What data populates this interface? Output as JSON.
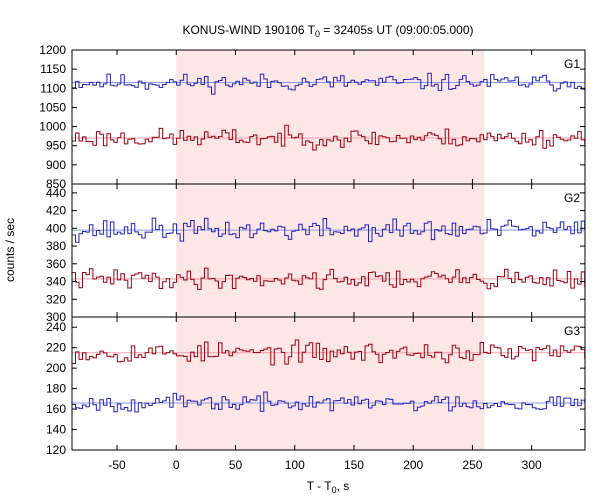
{
  "chart_data": {
    "type": "line",
    "title": {
      "prefix": "KONUS-WIND 190106 T",
      "sub": "0",
      "suffix": " = 32405s UT (09:00:05.000)"
    },
    "xlabel": {
      "prefix": "T - T",
      "sub": "0",
      "suffix": ", s"
    },
    "ylabel": "counts / sec",
    "xlim": [
      -88,
      345
    ],
    "x_ticks": [
      -50,
      0,
      50,
      100,
      150,
      200,
      250,
      300
    ],
    "x_tick_labels": [
      "-50",
      "0",
      "50",
      "100",
      "150",
      "200",
      "250",
      "300"
    ],
    "shaded_interval": [
      0,
      260
    ],
    "shade_color": "#fde6e6",
    "bin_width": 2.944,
    "panels": [
      {
        "label": "G1",
        "ylim": [
          850,
          1200
        ],
        "y_ticks": [
          850,
          900,
          950,
          1000,
          1050,
          1100,
          1150,
          1200
        ],
        "y_tick_labels": [
          "850",
          "900",
          "950",
          "1000",
          "1050",
          "1100",
          "1150",
          "1200"
        ],
        "series": [
          {
            "color": "#2222bb",
            "bg_color": "#8a9be8",
            "mean": 1115,
            "amplitude": 22,
            "seed": 11
          },
          {
            "color": "#990011",
            "bg_color": "#f2a0ae",
            "mean": 970,
            "amplitude": 24,
            "seed": 23
          }
        ]
      },
      {
        "label": "G2",
        "ylim": [
          300,
          450
        ],
        "y_ticks": [
          300,
          320,
          340,
          360,
          380,
          400,
          420,
          440
        ],
        "y_tick_labels": [
          "300",
          "320",
          "340",
          "360",
          "380",
          "400",
          "420",
          "440"
        ],
        "series": [
          {
            "color": "#2222bb",
            "bg_color": "#8a9be8",
            "mean": 398,
            "amplitude": 12,
            "seed": 37
          },
          {
            "color": "#990011",
            "bg_color": "#f2a0ae",
            "mean": 343,
            "amplitude": 11,
            "seed": 41
          }
        ]
      },
      {
        "label": "G3",
        "ylim": [
          120,
          250
        ],
        "y_ticks": [
          120,
          140,
          160,
          180,
          200,
          220,
          240
        ],
        "y_tick_labels": [
          "120",
          "140",
          "160",
          "180",
          "200",
          "220",
          "240"
        ],
        "series": [
          {
            "color": "#990011",
            "bg_color": "#f2a0ae",
            "mean": 215,
            "amplitude": 10,
            "seed": 53
          },
          {
            "color": "#2222bb",
            "bg_color": "#8a9be8",
            "mean": 166,
            "amplitude": 8,
            "seed": 67
          }
        ]
      }
    ]
  }
}
